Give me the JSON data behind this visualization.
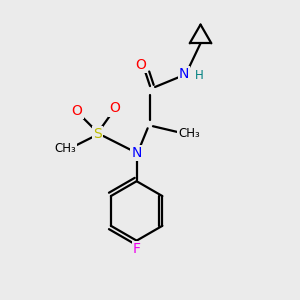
{
  "bg_color": "#ebebeb",
  "atom_colors": {
    "C": "#000000",
    "N": "#0000ff",
    "O": "#ff0000",
    "S": "#bbbb00",
    "F": "#ee00ee",
    "H": "#008080"
  },
  "figsize": [
    3.0,
    3.0
  ],
  "dpi": 100,
  "bond_lw": 1.6,
  "font_size": 10,
  "small_font": 8.5
}
